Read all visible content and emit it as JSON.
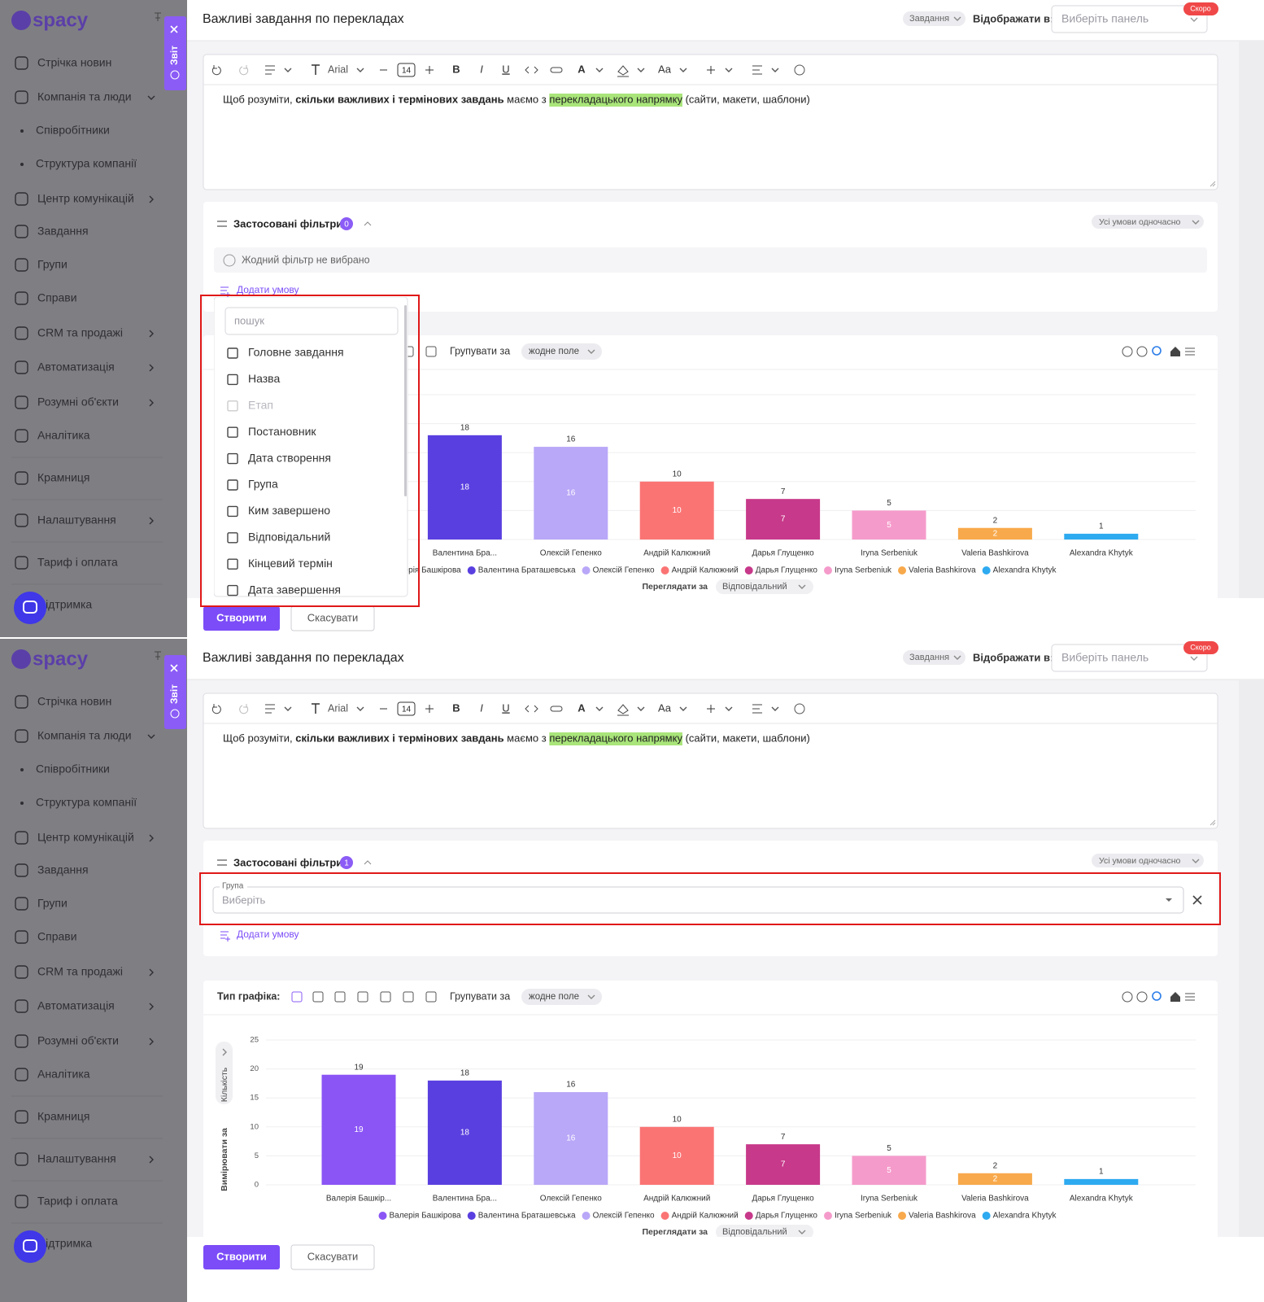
{
  "sidebar": {
    "logo": "spacy",
    "items": [
      "Стрічка новин",
      "Компанія та люди",
      "Співробітники",
      "Структура компанії",
      "Центр комунікацій",
      "Завдання",
      "Групи",
      "Справи",
      "CRM та продажі",
      "Автоматизація",
      "Розумні об'єкти",
      "Аналітика",
      "Крамниця",
      "Налаштування",
      "Тариф і оплата",
      "Підтримка"
    ]
  },
  "report_tab": "Звіт",
  "header": {
    "title": "Важливі завдання по перекладах",
    "entity": "Завдання",
    "display_in": "Відображати в:",
    "panel_placeholder": "Виберіть панель",
    "badge": "Скоро"
  },
  "toolbar": {
    "font": "Arial",
    "font_size": 14,
    "bold": "B",
    "italic": "I",
    "underline": "U",
    "color": "A",
    "case": "Aa"
  },
  "editor": {
    "text": [
      {
        "t": "Щоб розуміти, "
      },
      {
        "t": "скільки важливих і термінових завдань",
        "bold": true
      },
      {
        "t": " маємо з "
      },
      {
        "t": "перекладацького напрямку",
        "highlight": true
      },
      {
        "t": " (сайти, макети, шаблони)"
      }
    ]
  },
  "filters": {
    "title": "Застосовані фільтри",
    "mode": "Усі умови одночасно",
    "empty": "Жодний фільтр не вибрано",
    "add": "Додати умову"
  },
  "dropdown": {
    "search_placeholder": "пошук",
    "options": [
      {
        "label": "Головне завдання"
      },
      {
        "label": "Назва"
      },
      {
        "label": "Етап",
        "disabled": true
      },
      {
        "label": "Постановник"
      },
      {
        "label": "Дата створення"
      },
      {
        "label": "Група"
      },
      {
        "label": "Ким завершено"
      },
      {
        "label": "Відповідальний"
      },
      {
        "label": "Кінцевий термін"
      },
      {
        "label": "Дата завершення"
      }
    ]
  },
  "group_field": {
    "label": "Група",
    "placeholder": "Виберіть"
  },
  "screens": [
    {
      "filter_count": 0,
      "dropdown_open": true,
      "filter_field": false
    },
    {
      "filter_count": 1,
      "dropdown_open": false,
      "filter_field": true
    }
  ],
  "chart_toolbar": {
    "type_label": "Тип графіка:",
    "group_by": "Групувати за",
    "group_value": "жодне поле"
  },
  "chart_data": {
    "type": "bar",
    "categories": [
      "Валерія Башкір...",
      "Валентина Бра...",
      "Олексій Гепенко",
      "Андрій Калюжний",
      "Дарья Глущенко",
      "Iryna Serbeniuk",
      "Valeria Bashkirova",
      "Alexandra Khytyk"
    ],
    "values": [
      19,
      18,
      16,
      10,
      7,
      5,
      2,
      1
    ],
    "colors": [
      "#8b55f5",
      "#5a3fe0",
      "#b9a7f8",
      "#fb7474",
      "#c7398a",
      "#f59bcb",
      "#f8a94b",
      "#2eaaf0"
    ],
    "legend": [
      "Валерія Башкірова",
      "Валентина Браташевська",
      "Олексій Гепенко",
      "Андрій Калюжний",
      "Дарья Глущенко",
      "Iryna Serbeniuk",
      "Valeria Bashkirova",
      "Alexandra Khytyk"
    ],
    "ylim": [
      0,
      25
    ],
    "yticks": [
      0,
      5,
      10,
      15,
      20,
      25
    ],
    "grid": true,
    "y_label": "Кількість",
    "y_measure": "Вимірювати за",
    "x_view": "Переглядати за",
    "x_value": "Відповідальний"
  },
  "buttons": {
    "create": "Створити",
    "cancel": "Скасувати"
  }
}
